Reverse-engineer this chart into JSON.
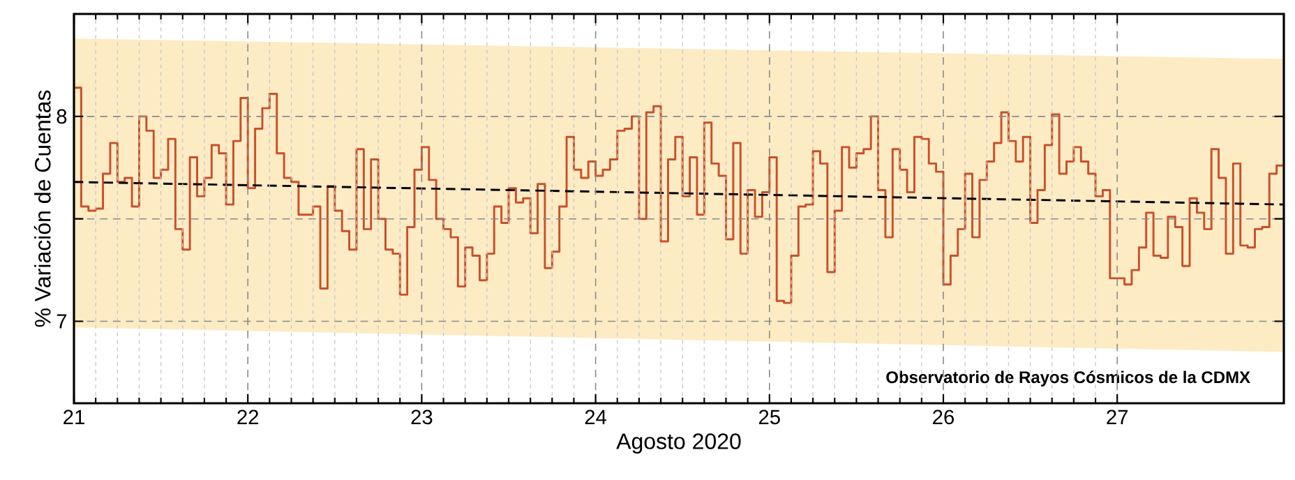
{
  "chart_data": {
    "type": "step",
    "xlabel": "Agosto 2020",
    "ylabel": "% Variación de Cuentas",
    "annotations": [
      "Observatorio de Rayos Cósmicos de la CDMX"
    ],
    "xlim": [
      "2020-08-21T00:00",
      "2020-08-27T23:00"
    ],
    "xticks": [
      {
        "value": "2020-08-21",
        "label": "21"
      },
      {
        "value": "2020-08-22",
        "label": "22"
      },
      {
        "value": "2020-08-23",
        "label": "23"
      },
      {
        "value": "2020-08-24",
        "label": "24"
      },
      {
        "value": "2020-08-25",
        "label": "25"
      },
      {
        "value": "2020-08-26",
        "label": "26"
      },
      {
        "value": "2020-08-27",
        "label": "27"
      }
    ],
    "ylim": [
      6.6,
      8.5
    ],
    "yticks": [
      7,
      {
        "value": 7.5,
        "label": null
      },
      8
    ],
    "grid": true,
    "series": [
      {
        "color": "#c8502a",
        "x": [
          "2020-08-21T00:00",
          "2020-08-21T01:00",
          "2020-08-21T02:00",
          "2020-08-21T03:00",
          "2020-08-21T04:00",
          "2020-08-21T05:00",
          "2020-08-21T06:00",
          "2020-08-21T07:00",
          "2020-08-21T08:00",
          "2020-08-21T09:00",
          "2020-08-21T10:00",
          "2020-08-21T11:00",
          "2020-08-21T12:00",
          "2020-08-21T13:00",
          "2020-08-21T14:00",
          "2020-08-21T15:00",
          "2020-08-21T16:00",
          "2020-08-21T17:00",
          "2020-08-21T18:00",
          "2020-08-21T19:00",
          "2020-08-21T20:00",
          "2020-08-21T21:00",
          "2020-08-21T22:00",
          "2020-08-21T23:00",
          "2020-08-22T00:00",
          "2020-08-22T01:00",
          "2020-08-22T02:00",
          "2020-08-22T03:00",
          "2020-08-22T04:00",
          "2020-08-22T05:00",
          "2020-08-22T06:00",
          "2020-08-22T07:00",
          "2020-08-22T08:00",
          "2020-08-22T09:00",
          "2020-08-22T10:00",
          "2020-08-22T11:00",
          "2020-08-22T12:00",
          "2020-08-22T13:00",
          "2020-08-22T14:00",
          "2020-08-22T15:00",
          "2020-08-22T16:00",
          "2020-08-22T17:00",
          "2020-08-22T18:00",
          "2020-08-22T19:00",
          "2020-08-22T20:00",
          "2020-08-22T21:00",
          "2020-08-22T22:00",
          "2020-08-22T23:00",
          "2020-08-23T00:00",
          "2020-08-23T01:00",
          "2020-08-23T02:00",
          "2020-08-23T03:00",
          "2020-08-23T04:00",
          "2020-08-23T05:00",
          "2020-08-23T06:00",
          "2020-08-23T07:00",
          "2020-08-23T08:00",
          "2020-08-23T09:00",
          "2020-08-23T10:00",
          "2020-08-23T11:00",
          "2020-08-23T12:00",
          "2020-08-23T13:00",
          "2020-08-23T14:00",
          "2020-08-23T15:00",
          "2020-08-23T16:00",
          "2020-08-23T17:00",
          "2020-08-23T18:00",
          "2020-08-23T19:00",
          "2020-08-23T20:00",
          "2020-08-23T21:00",
          "2020-08-23T22:00",
          "2020-08-23T23:00",
          "2020-08-24T00:00",
          "2020-08-24T01:00",
          "2020-08-24T02:00",
          "2020-08-24T03:00",
          "2020-08-24T04:00",
          "2020-08-24T05:00",
          "2020-08-24T06:00",
          "2020-08-24T07:00",
          "2020-08-24T08:00",
          "2020-08-24T09:00",
          "2020-08-24T10:00",
          "2020-08-24T11:00",
          "2020-08-24T12:00",
          "2020-08-24T13:00",
          "2020-08-24T14:00",
          "2020-08-24T15:00",
          "2020-08-24T16:00",
          "2020-08-24T17:00",
          "2020-08-24T18:00",
          "2020-08-24T19:00",
          "2020-08-24T20:00",
          "2020-08-24T21:00",
          "2020-08-24T22:00",
          "2020-08-24T23:00",
          "2020-08-25T00:00",
          "2020-08-25T01:00",
          "2020-08-25T02:00",
          "2020-08-25T03:00",
          "2020-08-25T04:00",
          "2020-08-25T05:00",
          "2020-08-25T06:00",
          "2020-08-25T07:00",
          "2020-08-25T08:00",
          "2020-08-25T09:00",
          "2020-08-25T10:00",
          "2020-08-25T11:00",
          "2020-08-25T12:00",
          "2020-08-25T13:00",
          "2020-08-25T14:00",
          "2020-08-25T15:00",
          "2020-08-25T16:00",
          "2020-08-25T17:00",
          "2020-08-25T18:00",
          "2020-08-25T19:00",
          "2020-08-25T20:00",
          "2020-08-25T21:00",
          "2020-08-25T22:00",
          "2020-08-25T23:00",
          "2020-08-26T00:00",
          "2020-08-26T01:00",
          "2020-08-26T02:00",
          "2020-08-26T03:00",
          "2020-08-26T04:00",
          "2020-08-26T05:00",
          "2020-08-26T06:00",
          "2020-08-26T07:00",
          "2020-08-26T08:00",
          "2020-08-26T09:00",
          "2020-08-26T10:00",
          "2020-08-26T11:00",
          "2020-08-26T12:00",
          "2020-08-26T13:00",
          "2020-08-26T14:00",
          "2020-08-26T15:00",
          "2020-08-26T16:00",
          "2020-08-26T17:00",
          "2020-08-26T18:00",
          "2020-08-26T19:00",
          "2020-08-26T20:00",
          "2020-08-26T21:00",
          "2020-08-26T22:00",
          "2020-08-26T23:00",
          "2020-08-27T00:00",
          "2020-08-27T01:00",
          "2020-08-27T02:00",
          "2020-08-27T03:00",
          "2020-08-27T04:00",
          "2020-08-27T05:00",
          "2020-08-27T06:00",
          "2020-08-27T07:00",
          "2020-08-27T08:00",
          "2020-08-27T09:00",
          "2020-08-27T10:00",
          "2020-08-27T11:00",
          "2020-08-27T12:00",
          "2020-08-27T13:00",
          "2020-08-27T14:00",
          "2020-08-27T15:00",
          "2020-08-27T16:00",
          "2020-08-27T17:00",
          "2020-08-27T18:00",
          "2020-08-27T19:00",
          "2020-08-27T20:00",
          "2020-08-27T21:00",
          "2020-08-27T22:00",
          "2020-08-27T23:00"
        ],
        "values": [
          8.14,
          7.56,
          7.54,
          7.55,
          7.72,
          7.87,
          7.68,
          7.7,
          7.56,
          8.0,
          7.93,
          7.7,
          7.74,
          7.89,
          7.45,
          7.35,
          7.8,
          7.61,
          7.7,
          7.86,
          7.82,
          7.57,
          7.88,
          8.09,
          7.65,
          7.94,
          8.04,
          8.11,
          7.82,
          7.7,
          7.68,
          7.52,
          7.52,
          7.56,
          7.16,
          7.66,
          7.54,
          7.44,
          7.35,
          7.84,
          7.45,
          7.79,
          7.5,
          7.35,
          7.33,
          7.13,
          7.46,
          7.74,
          7.85,
          7.69,
          7.5,
          7.45,
          7.41,
          7.17,
          7.36,
          7.32,
          7.2,
          7.33,
          7.56,
          7.48,
          7.65,
          7.58,
          7.6,
          7.43,
          7.67,
          7.26,
          7.34,
          7.56,
          7.9,
          7.74,
          7.7,
          7.78,
          7.71,
          7.74,
          7.79,
          7.93,
          7.94,
          8.0,
          7.5,
          8.02,
          8.05,
          7.39,
          7.79,
          7.9,
          7.61,
          7.8,
          7.52,
          7.97,
          7.77,
          7.71,
          7.4,
          7.87,
          7.33,
          7.64,
          7.51,
          7.63,
          7.8,
          7.1,
          7.09,
          7.32,
          7.56,
          7.57,
          7.83,
          7.77,
          7.24,
          7.54,
          7.85,
          7.75,
          7.82,
          7.84,
          8.0,
          7.64,
          7.41,
          7.84,
          7.74,
          7.63,
          7.9,
          7.89,
          7.77,
          7.73,
          7.18,
          7.32,
          7.45,
          7.72,
          7.41,
          7.69,
          7.78,
          7.87,
          8.02,
          7.88,
          7.78,
          7.9,
          7.48,
          7.64,
          7.86,
          8.01,
          7.72,
          7.78,
          7.85,
          7.78,
          7.72,
          7.61,
          7.64,
          7.21,
          7.21,
          7.18,
          7.25,
          7.36,
          7.53,
          7.32,
          7.31,
          7.51,
          7.46,
          7.27,
          7.6,
          7.53,
          7.45,
          7.84,
          7.7,
          7.33,
          7.77,
          7.37,
          7.36,
          7.45,
          7.46,
          7.72,
          7.76,
          7.76
        ]
      },
      {
        "type": "line",
        "color": "#000000",
        "line_style": "dashed",
        "x": [
          "2020-08-21T00:00",
          "2020-08-27T23:00"
        ],
        "values": [
          7.68,
          7.57
        ],
        "lower": [
          6.97,
          6.85
        ],
        "upper": [
          8.38,
          8.28
        ]
      }
    ]
  }
}
